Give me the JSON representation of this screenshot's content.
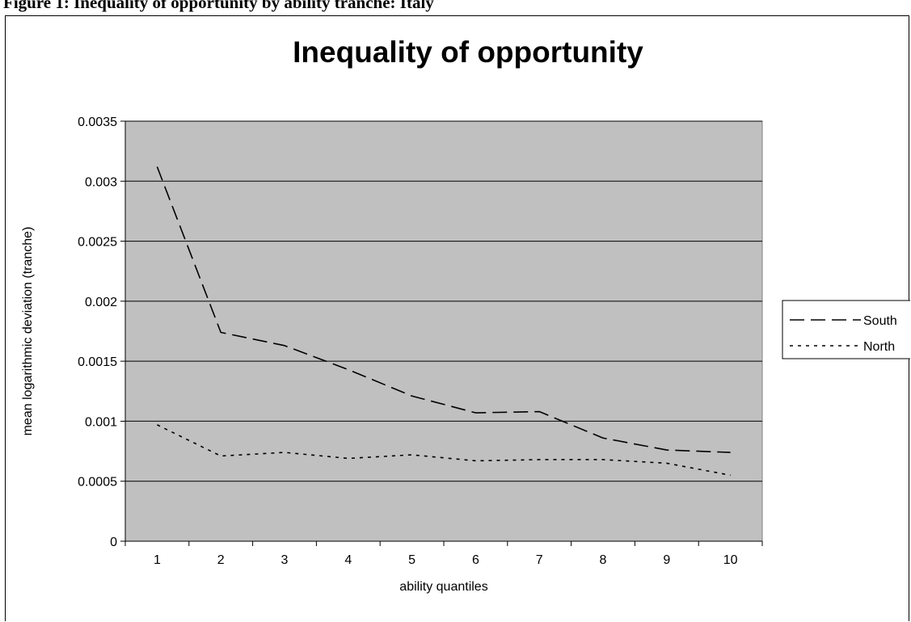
{
  "figure": {
    "caption": "Figure 1: Inequality of opportunity by ability tranche: Italy"
  },
  "chart_data": {
    "type": "line",
    "title": "Inequality of opportunity",
    "xlabel": "ability quantiles",
    "ylabel": "mean logarithmic deviation (tranche)",
    "categories": [
      "1",
      "2",
      "3",
      "4",
      "5",
      "6",
      "7",
      "8",
      "9",
      "10"
    ],
    "ylim": [
      0,
      0.0035
    ],
    "yticks": [
      "0",
      "0.0005",
      "0.001",
      "0.0015",
      "0.002",
      "0.0025",
      "0.003",
      "0.0035"
    ],
    "grid": true,
    "plot_background": "#c0c0c0",
    "legend_position": "right",
    "series": [
      {
        "name": "South",
        "style": "dashed",
        "color": "#000000",
        "values": [
          0.00312,
          0.00174,
          0.00163,
          0.00143,
          0.00121,
          0.00107,
          0.00108,
          0.00086,
          0.00076,
          0.00074
        ]
      },
      {
        "name": "North",
        "style": "dotted",
        "color": "#000000",
        "values": [
          0.00097,
          0.00071,
          0.00074,
          0.00069,
          0.00072,
          0.00067,
          0.00068,
          0.00068,
          0.00065,
          0.00055
        ]
      }
    ]
  }
}
